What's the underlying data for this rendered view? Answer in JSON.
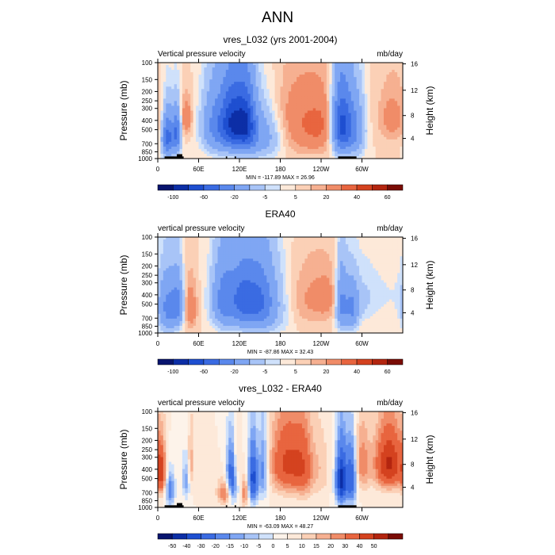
{
  "figure": {
    "title": "ANN"
  },
  "chart_data": [
    {
      "type": "heatmap",
      "title": "vres_L032 (yrs 2001-2004)",
      "left_label": "Vertical pressure velocity",
      "units": "mb/day",
      "xlabel": "",
      "ylabel": "Pressure (mb)",
      "ylabel_right": "Height (km)",
      "x_ticks": [
        "0",
        "60E",
        "120E",
        "180",
        "120W",
        "60W"
      ],
      "xlim": [
        0,
        360
      ],
      "y_ticks": [
        "100",
        "150",
        "200",
        "250",
        "300",
        "400",
        "500",
        "700",
        "850",
        "1000"
      ],
      "ylim": [
        1000,
        100
      ],
      "y_scale": "log",
      "y_right_ticks": [
        "4",
        "8",
        "12",
        "16"
      ],
      "stats": "MIN = -117.89  MAX = 26.96",
      "colorbar_labels": [
        "-100",
        "-60",
        "-20",
        "-5",
        "5",
        "20",
        "40",
        "60"
      ],
      "colorbar_levels": [
        -120,
        -100,
        -80,
        -60,
        -40,
        -20,
        -10,
        -5,
        0,
        5,
        10,
        20,
        30,
        40,
        50,
        60
      ]
    },
    {
      "type": "heatmap",
      "title": "ERA40",
      "left_label": "vertical pressure velocity",
      "units": "mb/day",
      "xlabel": "",
      "ylabel": "Pressure (mb)",
      "ylabel_right": "Height (km)",
      "x_ticks": [
        "0",
        "60E",
        "120E",
        "180",
        "120W",
        "60W"
      ],
      "xlim": [
        0,
        360
      ],
      "y_ticks": [
        "100",
        "150",
        "200",
        "250",
        "300",
        "400",
        "500",
        "700",
        "850",
        "1000"
      ],
      "ylim": [
        1000,
        100
      ],
      "y_scale": "log",
      "y_right_ticks": [
        "4",
        "8",
        "12",
        "16"
      ],
      "stats": "MIN = -87.86  MAX = 32.43",
      "colorbar_labels": [
        "-100",
        "-60",
        "-20",
        "-5",
        "5",
        "20",
        "40",
        "60"
      ],
      "colorbar_levels": [
        -120,
        -100,
        -80,
        -60,
        -40,
        -20,
        -10,
        -5,
        0,
        5,
        10,
        20,
        30,
        40,
        50,
        60
      ]
    },
    {
      "type": "heatmap",
      "title": "vres_L032 - ERA40",
      "left_label": "vertical pressure velocity",
      "units": "mb/day",
      "xlabel": "",
      "ylabel": "Pressure (mb)",
      "ylabel_right": "Height (km)",
      "x_ticks": [
        "0",
        "60E",
        "120E",
        "180",
        "120W",
        "60W"
      ],
      "xlim": [
        0,
        360
      ],
      "y_ticks": [
        "100",
        "150",
        "200",
        "250",
        "300",
        "400",
        "500",
        "700",
        "850",
        "1000"
      ],
      "ylim": [
        1000,
        100
      ],
      "y_scale": "log",
      "y_right_ticks": [
        "4",
        "8",
        "12",
        "16"
      ],
      "stats": "MIN = -63.09  MAX = 48.27",
      "colorbar_labels": [
        "-50",
        "-40",
        "-30",
        "-20",
        "-15",
        "-10",
        "-5",
        "0",
        "5",
        "10",
        "15",
        "20",
        "30",
        "40",
        "50"
      ],
      "colorbar_levels": [
        -60,
        -50,
        -40,
        -30,
        -20,
        -15,
        -10,
        -5,
        0,
        5,
        10,
        15,
        20,
        30,
        40,
        50,
        60
      ]
    }
  ],
  "colors": {
    "seq16": [
      "#08146e",
      "#0c2ea6",
      "#1e4fd0",
      "#3a6be2",
      "#5a88ec",
      "#7fa6f3",
      "#a8c4f7",
      "#cfe1fb",
      "#fde9d9",
      "#fbd0b6",
      "#f6b091",
      "#f08c68",
      "#e8653f",
      "#d4421f",
      "#b3250f",
      "#7a0c05"
    ],
    "seq17": [
      "#08146e",
      "#0c2ea6",
      "#1e4fd0",
      "#3a6be2",
      "#5a88ec",
      "#7fa6f3",
      "#a8c4f7",
      "#cfe1fb",
      "#fdf3ea",
      "#fde9d9",
      "#fbd0b6",
      "#f6b091",
      "#f08c68",
      "#e8653f",
      "#d4421f",
      "#b3250f",
      "#7a0c05"
    ],
    "topography": "#000000"
  }
}
